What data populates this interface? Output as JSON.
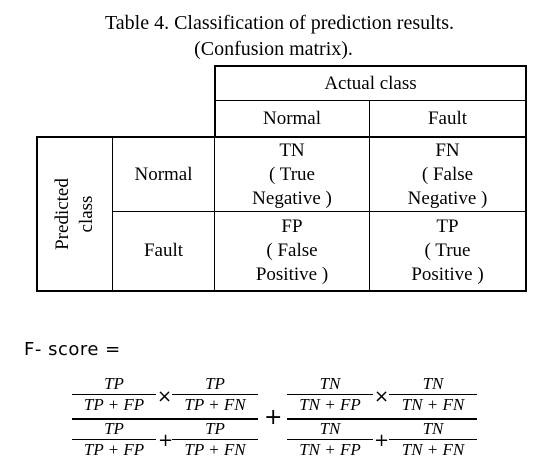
{
  "caption": {
    "line1": "Table 4. Classification of prediction results.",
    "line2": "(Confusion matrix)."
  },
  "table": {
    "actual_header": "Actual class",
    "predicted_header": "Predicted class",
    "predicted_header_line1": "Predicted",
    "predicted_header_line2": "class",
    "col_labels": [
      "Normal",
      "Fault"
    ],
    "row_labels": [
      "Normal",
      "Fault"
    ],
    "cells": [
      [
        {
          "abbr": "TN",
          "desc1": "( True",
          "desc2": "Negative )"
        },
        {
          "abbr": "FN",
          "desc1": "( False",
          "desc2": "Negative )"
        }
      ],
      [
        {
          "abbr": "FP",
          "desc1": "( False",
          "desc2": "Positive )"
        },
        {
          "abbr": "TP",
          "desc1": "( True",
          "desc2": "Positive )"
        }
      ]
    ]
  },
  "formula": {
    "label": "F- score =",
    "tp": "TP",
    "tn": "TN",
    "tp_fp": "TP + FP",
    "tp_fn": "TP + FN",
    "tn_fp": "TN + FP",
    "tn_fn": "TN + FN",
    "times": "×",
    "plus": "+"
  }
}
